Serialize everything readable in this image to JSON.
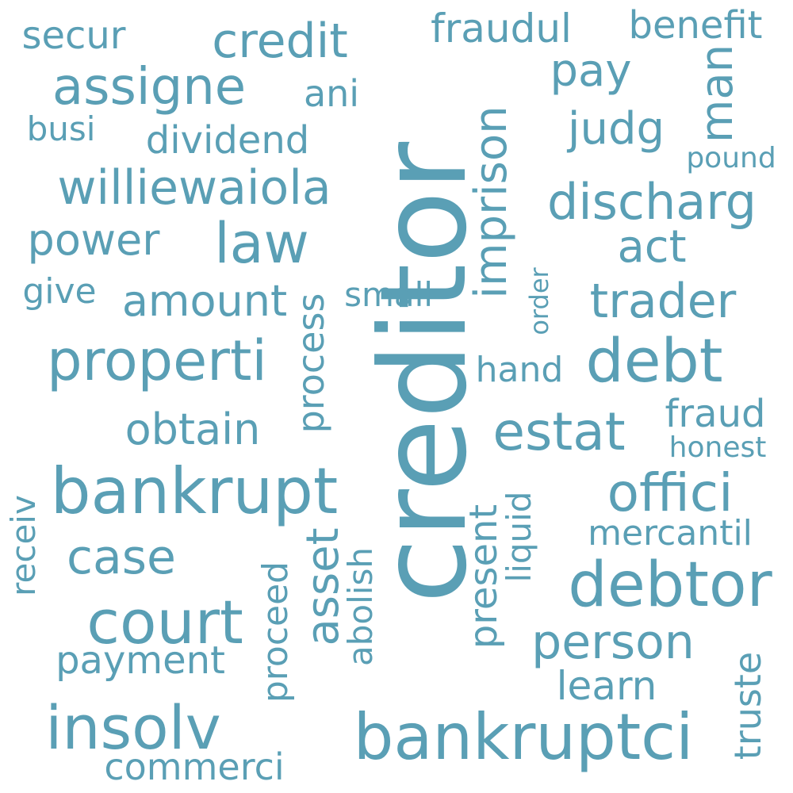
{
  "word_color": "#5a9fb5",
  "background": "#ffffff",
  "words": {
    "creditor": "creditor",
    "bankruptci": "bankruptci",
    "debtor": "debtor",
    "bankrupt": "bankrupt",
    "court": "court",
    "insolv": "insolv",
    "debt": "debt",
    "properti": "properti",
    "law": "law",
    "assigne": "assigne",
    "williewaiola": "williewaiola",
    "credit": "credit",
    "discharg": "discharg",
    "estat": "estat",
    "offici": "offici",
    "person": "person",
    "trader": "trader",
    "case": "case",
    "commerci": "commerci",
    "payment": "payment",
    "obtain": "obtain",
    "power": "power",
    "amount": "amount",
    "pay": "pay",
    "fraudul": "fraudul",
    "benefit": "benefit",
    "secur": "secur",
    "judg": "judg",
    "man": "man",
    "imprison": "imprison",
    "process": "process",
    "proceed": "proceed",
    "asset": "asset",
    "abolish": "abolish",
    "present": "present",
    "liquid": "liquid",
    "truste": "truste",
    "receiv": "receiv",
    "learn": "learn",
    "mercantil": "mercantil",
    "fraud": "fraud",
    "honest": "honest",
    "hand": "hand",
    "act": "act",
    "small": "small",
    "give": "give",
    "busi": "busi",
    "dividend": "dividend",
    "ani": "ani",
    "pound": "pound",
    "order": "order"
  }
}
